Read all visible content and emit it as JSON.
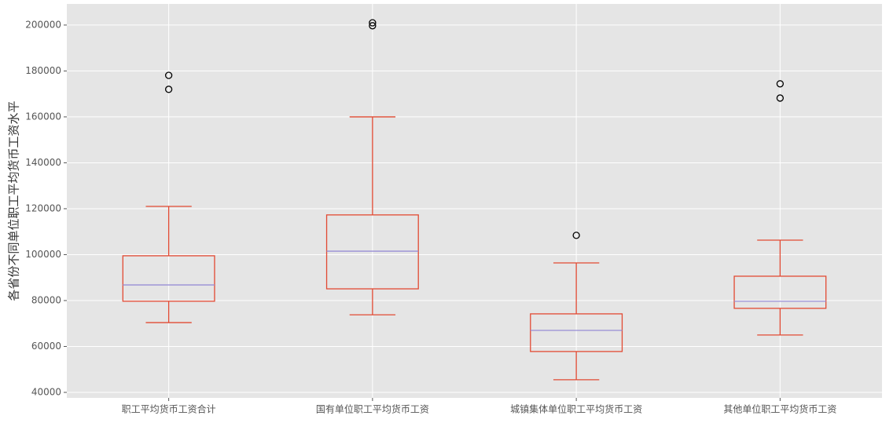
{
  "chart_data": {
    "type": "box",
    "y_label": "各省份不同单位职工平均货币工资水平",
    "categories": [
      "职工平均货币工资合计",
      "国有单位职工平均货币工资",
      "城镇集体单位职工平均货币工资",
      "其他单位职工平均货币工资"
    ],
    "boxes": [
      {
        "whislo": 70400,
        "q1": 79700,
        "med": 86800,
        "q3": 99500,
        "whishi": 121000,
        "fliers": [
          178100,
          172000
        ]
      },
      {
        "whislo": 73800,
        "q1": 85100,
        "med": 101500,
        "q3": 117300,
        "whishi": 160000,
        "fliers": [
          201000,
          199700
        ]
      },
      {
        "whislo": 45500,
        "q1": 57800,
        "med": 67000,
        "q3": 74200,
        "whishi": 96400,
        "fliers": [
          108400
        ]
      },
      {
        "whislo": 65000,
        "q1": 76600,
        "med": 79700,
        "q3": 90600,
        "whishi": 106300,
        "fliers": [
          174400,
          168200
        ]
      }
    ],
    "box_color": "#e24a33",
    "median_color": "#988ed5",
    "ylim": [
      37600,
      209200
    ],
    "yticks": [
      40000,
      60000,
      80000,
      100000,
      120000,
      140000,
      160000,
      180000,
      200000
    ],
    "grid": true
  }
}
